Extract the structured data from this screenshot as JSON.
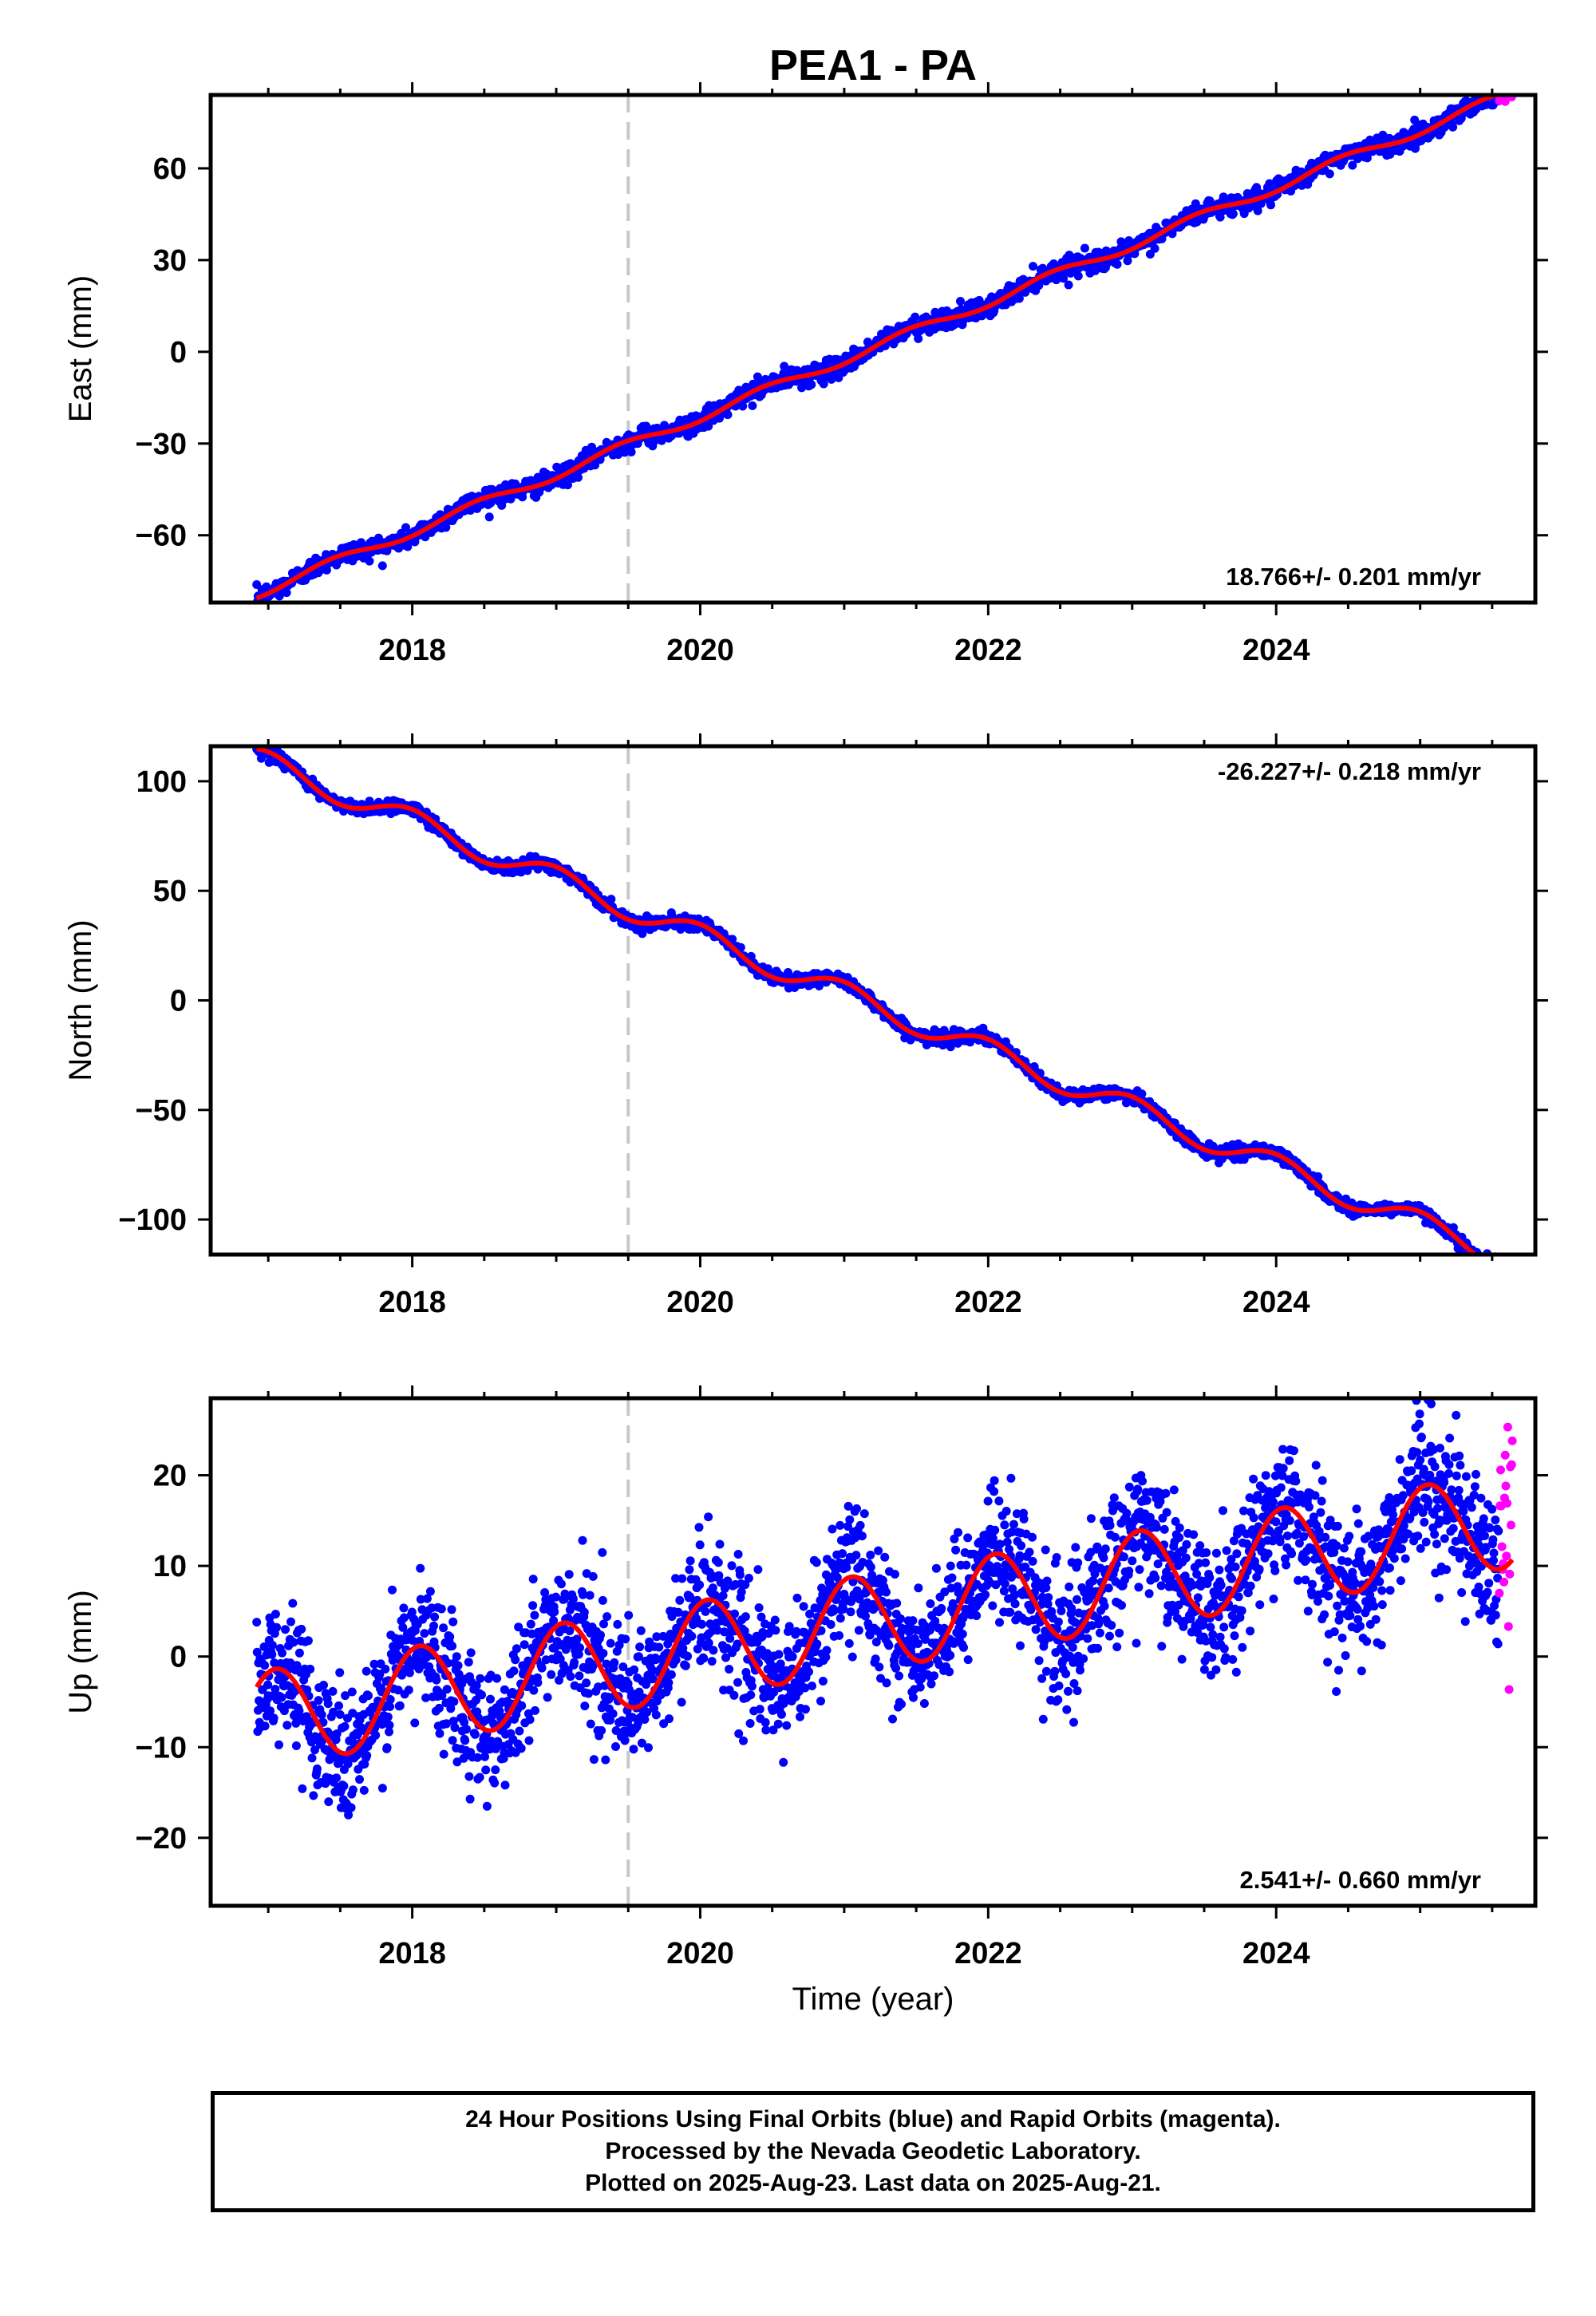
{
  "chart_data": [
    {
      "type": "scatter",
      "title": "PEA1 - PA",
      "ylabel": "East (mm)",
      "xlabel": "",
      "xlim": [
        2016.6,
        2025.8
      ],
      "ylim": [
        -82,
        84
      ],
      "yticks": [
        -60,
        -30,
        0,
        30,
        60
      ],
      "ytick_labels": [
        "−60",
        "−30",
        "0",
        "30",
        "60"
      ],
      "xticks": [
        2018,
        2020,
        2022,
        2024
      ],
      "xtick_labels": [
        "2018",
        "2020",
        "2022",
        "2024"
      ],
      "rate_label": "18.766+/- 0.201 mm/yr",
      "rate_position": "bottom-right",
      "marker_line_x": 2019.5,
      "x_start": 2016.92,
      "x_rapid": 2025.55,
      "x_end": 2025.64,
      "trend_fit": {
        "intercept": -79,
        "slope": 18.766,
        "start": 2016.92
      },
      "scatter_sigma": 1.6,
      "series": [
        {
          "color": "#0000ff"
        },
        {
          "color": "#ff00ff"
        },
        {
          "color": "#ff0000"
        }
      ]
    },
    {
      "type": "scatter",
      "ylabel": "North (mm)",
      "xlabel": "",
      "xlim": [
        2016.6,
        2025.8
      ],
      "ylim": [
        -116,
        116
      ],
      "yticks": [
        -100,
        -50,
        0,
        50,
        100
      ],
      "ytick_labels": [
        "−100",
        "−50",
        "0",
        "50",
        "100"
      ],
      "xticks": [
        2018,
        2020,
        2022,
        2024
      ],
      "xtick_labels": [
        "2018",
        "2020",
        "2022",
        "2024"
      ],
      "rate_label": "-26.227+/- 0.218 mm/yr",
      "rate_position": "top-right",
      "marker_line_x": 2019.5,
      "x_start": 2016.92,
      "x_rapid": 2025.55,
      "x_end": 2025.64,
      "trend_fit": {
        "intercept": 110,
        "slope": -26.227,
        "start": 2016.92
      },
      "scatter_sigma": 1.5,
      "series": [
        {
          "color": "#0000ff"
        },
        {
          "color": "#ff00ff"
        },
        {
          "color": "#ff0000"
        }
      ]
    },
    {
      "type": "scatter",
      "ylabel": "Up (mm)",
      "xlabel": "Time (year)",
      "xlim": [
        2016.6,
        2025.8
      ],
      "ylim": [
        -27.5,
        28.5
      ],
      "yticks": [
        -20,
        -10,
        0,
        10,
        20
      ],
      "ytick_labels": [
        "−20",
        "−10",
        "0",
        "10",
        "20"
      ],
      "xticks": [
        2018,
        2020,
        2022,
        2024
      ],
      "xtick_labels": [
        "2018",
        "2020",
        "2022",
        "2024"
      ],
      "rate_label": "2.541+/- 0.660 mm/yr",
      "rate_position": "bottom-right",
      "marker_line_x": 2019.5,
      "x_start": 2016.92,
      "x_rapid": 2025.55,
      "x_end": 2025.64,
      "trend_fit": {
        "intercept": -7,
        "slope": 2.541,
        "start": 2016.92,
        "seasonal_amplitude": 5.3,
        "seasonal_phase": 2017.05
      },
      "scatter_sigma": 3.6,
      "series": [
        {
          "color": "#0000ff"
        },
        {
          "color": "#ff00ff"
        },
        {
          "color": "#ff0000"
        }
      ]
    }
  ],
  "footer": {
    "line1": "24 Hour Positions Using Final Orbits (blue) and Rapid Orbits (magenta).",
    "line2": "Processed by the Nevada Geodetic Laboratory.",
    "line3": "Plotted on 2025-Aug-23. Last data on 2025-Aug-21."
  }
}
